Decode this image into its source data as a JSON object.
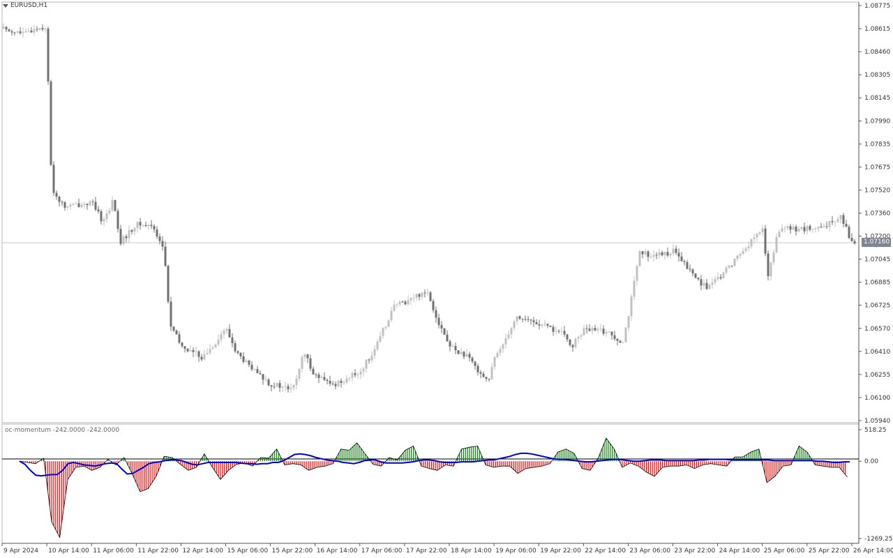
{
  "window": {
    "symbol": "EURUSD,H1",
    "menu_icon": "triangle-down-icon"
  },
  "indicator": {
    "title": "oc-momentum -242.0000 -242.0000",
    "scale_labels": [
      "518.25",
      "0.00",
      "-1269.25"
    ],
    "scale_values": [
      518.25,
      0,
      -1269.25
    ]
  },
  "price_axis": {
    "labels": [
      "1.08775",
      "1.08615",
      "1.08460",
      "1.08305",
      "1.08145",
      "1.07990",
      "1.07835",
      "1.07675",
      "1.07520",
      "1.07360",
      "1.07200",
      "1.07045",
      "1.06885",
      "1.06725",
      "1.06570",
      "1.06410",
      "1.06255",
      "1.06100",
      "1.05940"
    ],
    "current_price": "1.07160"
  },
  "time_axis": {
    "labels": [
      "9 Apr 2024",
      "10 Apr 14:00",
      "11 Apr 06:00",
      "11 Apr 22:00",
      "12 Apr 14:00",
      "15 Apr 06:00",
      "15 Apr 22:00",
      "16 Apr 14:00",
      "17 Apr 06:00",
      "17 Apr 22:00",
      "18 Apr 14:00",
      "19 Apr 06:00",
      "19 Apr 22:00",
      "22 Apr 14:00",
      "23 Apr 06:00",
      "23 Apr 22:00",
      "24 Apr 14:00",
      "25 Apr 06:00",
      "25 Apr 22:00",
      "26 Apr 14:00"
    ]
  },
  "colors": {
    "bull_candle": "#c0c0c0",
    "bear_candle": "#707070",
    "histogram_positive": "#008000",
    "histogram_negative": "#ff0000",
    "signal_line": "#0000cc",
    "current_price_line": "#c0c0c0",
    "price_tag_bg": "#7f8591"
  },
  "chart_data": [
    {
      "type": "candlestick",
      "title": "EURUSD,H1",
      "ylim": [
        1.0594,
        1.08775
      ],
      "x_range": [
        "9 Apr 2024",
        "26 Apr 14:00"
      ],
      "close_path": [
        [
          "9 Apr 2024",
          1.0862
        ],
        [
          "10 Apr 06:00",
          1.0858
        ],
        [
          "10 Apr 10:00",
          1.0862
        ],
        [
          "10 Apr 14:00",
          1.0863
        ],
        [
          "10 Apr 15:00",
          1.0782
        ],
        [
          "10 Apr 16:00",
          1.0752
        ],
        [
          "10 Apr 20:00",
          1.074
        ],
        [
          "11 Apr 06:00",
          1.0743
        ],
        [
          "11 Apr 10:00",
          1.073
        ],
        [
          "11 Apr 14:00",
          1.0745
        ],
        [
          "11 Apr 16:00",
          1.0715
        ],
        [
          "11 Apr 22:00",
          1.0728
        ],
        [
          "12 Apr 04:00",
          1.0727
        ],
        [
          "12 Apr 08:00",
          1.071
        ],
        [
          "12 Apr 10:00",
          1.066
        ],
        [
          "12 Apr 14:00",
          1.0645
        ],
        [
          "12 Apr 18:00",
          1.0641
        ],
        [
          "12 Apr 22:00",
          1.0637
        ],
        [
          "15 Apr 06:00",
          1.0657
        ],
        [
          "15 Apr 10:00",
          1.064
        ],
        [
          "15 Apr 16:00",
          1.0628
        ],
        [
          "15 Apr 22:00",
          1.0619
        ],
        [
          "16 Apr 06:00",
          1.0615
        ],
        [
          "16 Apr 10:00",
          1.064
        ],
        [
          "16 Apr 14:00",
          1.0625
        ],
        [
          "16 Apr 20:00",
          1.0618
        ],
        [
          "17 Apr 06:00",
          1.0627
        ],
        [
          "17 Apr 12:00",
          1.0645
        ],
        [
          "17 Apr 18:00",
          1.0672
        ],
        [
          "17 Apr 22:00",
          1.0675
        ],
        [
          "18 Apr 06:00",
          1.0683
        ],
        [
          "18 Apr 10:00",
          1.0662
        ],
        [
          "18 Apr 14:00",
          1.0645
        ],
        [
          "18 Apr 20:00",
          1.0638
        ],
        [
          "19 Apr 04:00",
          1.0621
        ],
        [
          "19 Apr 06:00",
          1.0635
        ],
        [
          "19 Apr 14:00",
          1.0665
        ],
        [
          "19 Apr 22:00",
          1.066
        ],
        [
          "22 Apr 06:00",
          1.0654
        ],
        [
          "22 Apr 10:00",
          1.0645
        ],
        [
          "22 Apr 14:00",
          1.0656
        ],
        [
          "22 Apr 22:00",
          1.0655
        ],
        [
          "23 Apr 04:00",
          1.0648
        ],
        [
          "23 Apr 06:00",
          1.0665
        ],
        [
          "23 Apr 10:00",
          1.0708
        ],
        [
          "23 Apr 18:00",
          1.0707
        ],
        [
          "23 Apr 22:00",
          1.071
        ],
        [
          "24 Apr 06:00",
          1.0692
        ],
        [
          "24 Apr 10:00",
          1.0685
        ],
        [
          "24 Apr 14:00",
          1.069
        ],
        [
          "24 Apr 22:00",
          1.0708
        ],
        [
          "25 Apr 06:00",
          1.0725
        ],
        [
          "25 Apr 08:00",
          1.0693
        ],
        [
          "25 Apr 12:00",
          1.0725
        ],
        [
          "25 Apr 22:00",
          1.0725
        ],
        [
          "26 Apr 04:00",
          1.0725
        ],
        [
          "26 Apr 10:00",
          1.0735
        ],
        [
          "26 Apr 14:00",
          1.0716
        ]
      ],
      "current_price": 1.0716
    },
    {
      "type": "bar",
      "title": "oc-momentum -242.0000 -242.0000",
      "ylim": [
        -1269.25,
        518.25
      ],
      "series": [
        {
          "name": "",
          "color": "#008000 / #ff0000",
          "values": [
            0,
            -20,
            -40,
            50,
            -1000,
            -1250,
            -300,
            -100,
            -80,
            -150,
            -100,
            30,
            -60,
            60,
            -200,
            -500,
            -450,
            -250,
            80,
            60,
            -50,
            -150,
            -100,
            120,
            -100,
            -300,
            -150,
            -50,
            -30,
            -80,
            60,
            50,
            200,
            -60,
            -40,
            -60,
            -150,
            -100,
            -80,
            -40,
            200,
            180,
            300,
            120,
            -50,
            -80,
            60,
            20,
            180,
            250,
            -80,
            -120,
            -150,
            -60,
            -80,
            200,
            230,
            250,
            -60,
            -100,
            -80,
            -80,
            -200,
            -120,
            -100,
            -80,
            -40,
            150,
            200,
            130,
            -120,
            -150,
            50,
            380,
            200,
            -100,
            -30,
            -80,
            -180,
            -250,
            -100,
            -80,
            -80,
            -60,
            -120,
            -60,
            -40,
            -60,
            -80,
            70,
            70,
            150,
            200,
            -350,
            -250,
            -80,
            -60,
            250,
            150,
            -60,
            -80,
            -100,
            -100,
            -260
          ]
        },
        {
          "name": "",
          "color": "#0000cc",
          "values": [
            0,
            -50,
            -150,
            -230,
            -240,
            -230,
            -220,
            -220,
            -150,
            -40,
            -20,
            -40,
            -60,
            -70,
            -80,
            -60,
            -40,
            -30,
            -40,
            -130,
            -210,
            -200,
            -150,
            -100,
            -40,
            -20,
            -10,
            10,
            20,
            20,
            10,
            -20,
            -50,
            -60,
            -40,
            -20,
            -20,
            -20,
            -20,
            -20,
            -20,
            -30,
            -40,
            -40,
            -50,
            -40,
            -40,
            -20,
            -20,
            10,
            60,
            110,
            120,
            110,
            90,
            60,
            40,
            20,
            10,
            0,
            -20,
            -30,
            -40,
            -20,
            10,
            20,
            20,
            -10,
            -30,
            -30,
            -30,
            -30,
            -20,
            -10,
            10,
            20,
            20,
            10,
            -10,
            -20,
            -20,
            -20,
            -10,
            -10,
            -10,
            0,
            10,
            20,
            20,
            40,
            60,
            80,
            110,
            130,
            130,
            120,
            100,
            80,
            60,
            40,
            30,
            30,
            20,
            10,
            0,
            -10,
            -10,
            0,
            10,
            20,
            30,
            30,
            20,
            10,
            0,
            0,
            10,
            20,
            20,
            20,
            10,
            10,
            10,
            10,
            10,
            10,
            20,
            20,
            30,
            30,
            30,
            30,
            20,
            20,
            20,
            20,
            20,
            20,
            20,
            20,
            10,
            10,
            10,
            10,
            10,
            10,
            10,
            10,
            0,
            0,
            -10,
            -20,
            -20,
            -10,
            -10
          ]
        }
      ]
    }
  ]
}
